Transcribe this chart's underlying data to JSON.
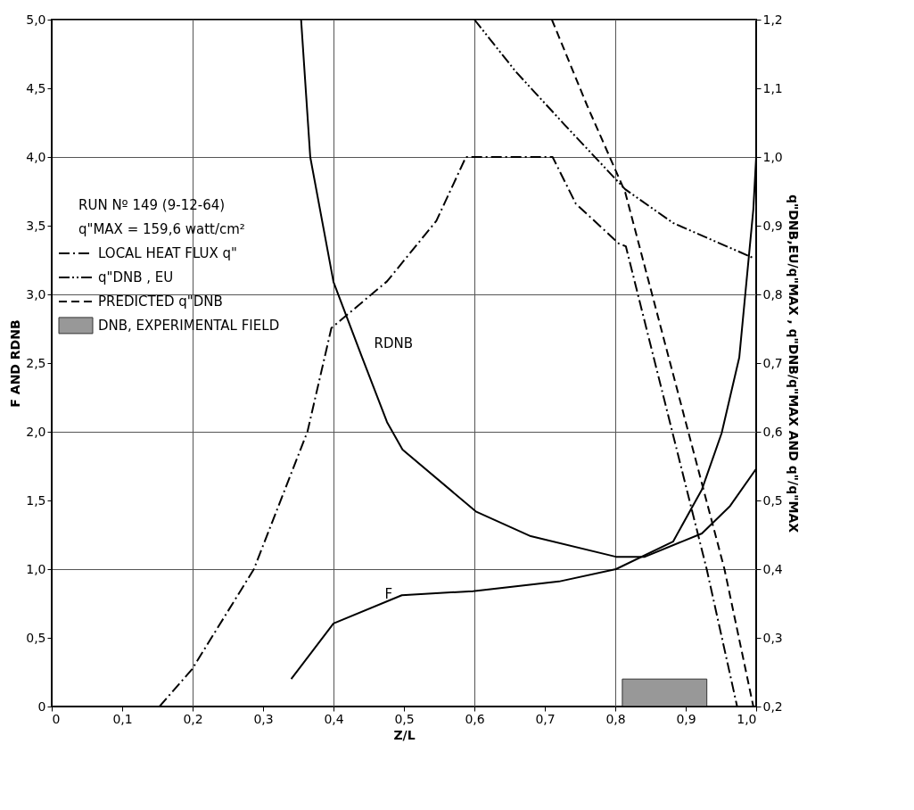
{
  "chart_data": {
    "type": "line",
    "xlabel": "Z/L",
    "ylabel": "F AND RDNB",
    "y2label": "q\"DNB,EU/q\"MAX , q\"DNB/q\"MAX AND q\"/q\"MAX",
    "annotations": [
      "RUN Nº 149 (9-12-64)",
      "q\"MAX = 159,6 watt/cm²",
      {
        "text": "RDNB",
        "x": 0.44,
        "y": 2.55
      },
      {
        "text": "F",
        "x": 0.455,
        "y": 0.73
      }
    ],
    "series": [
      {
        "name": "LOCAL HEAT FLUX q\"",
        "type": "line",
        "axis": "y2",
        "color": "#000000",
        "line_style": "dashdot",
        "x": [
          0.153,
          0.199,
          0.287,
          0.363,
          0.397,
          0.476,
          0.546,
          0.588,
          0.711,
          0.744,
          0.805,
          0.815,
          0.93,
          0.973
        ],
        "values": [
          0.2,
          0.254,
          0.4,
          0.6,
          0.751,
          0.819,
          0.907,
          1.0,
          1.0,
          0.932,
          0.874,
          0.87,
          0.399,
          0.2
        ]
      },
      {
        "name": "q\"DNB , EU",
        "type": "line",
        "axis": "y2",
        "color": "#000000",
        "line_style": "dashdotdot",
        "x": [
          0.6,
          0.659,
          0.728,
          0.814,
          0.882,
          0.996
        ],
        "values": [
          1.2,
          1.124,
          1.047,
          0.953,
          0.904,
          0.853
        ]
      },
      {
        "name": "PREDICTED q\"DNB",
        "type": "line",
        "axis": "y2",
        "color": "#000000",
        "line_style": "dashed",
        "x": [
          0.71,
          0.76,
          0.814,
          0.955,
          0.996
        ],
        "values": [
          1.2,
          1.075,
          0.949,
          0.4,
          0.2
        ]
      },
      {
        "name": "DNB, EXPERIMENTAL FIELD",
        "type": "area",
        "color": "#7f7f7f",
        "x": [
          0.81,
          0.93
        ],
        "values": [
          0.2,
          0.2
        ]
      },
      {
        "type": "line",
        "color": "#000000",
        "line_style": "solid",
        "x": [
          0.354,
          0.367,
          0.4,
          0.44,
          0.476,
          0.498,
          0.602,
          0.68,
          0.801,
          0.842,
          0.923,
          0.963,
          1.0
        ],
        "values": [
          5.0,
          4.0,
          3.09,
          2.55,
          2.07,
          1.87,
          1.42,
          1.24,
          1.09,
          1.09,
          1.26,
          1.46,
          1.73
        ]
      },
      {
        "type": "line",
        "color": "#000000",
        "line_style": "solid",
        "x": [
          0.34,
          0.4,
          0.497,
          0.598,
          0.72,
          0.801,
          0.882,
          0.923,
          0.951,
          0.976,
          0.996,
          1.0
        ],
        "values": [
          0.2,
          0.605,
          0.81,
          0.84,
          0.91,
          1.0,
          1.2,
          1.58,
          1.99,
          2.54,
          3.62,
          4.0
        ]
      }
    ],
    "xlim": [
      0,
      1.0
    ],
    "xticks": [
      0,
      {
        "value": 0.1,
        "label": "0,1"
      },
      {
        "value": 0.2,
        "label": "0,2"
      },
      {
        "value": 0.3,
        "label": "0,3"
      },
      {
        "value": 0.4,
        "label": "0,4"
      },
      {
        "value": 0.5,
        "label": "0,5"
      },
      {
        "value": 0.6,
        "label": "0,6"
      },
      {
        "value": 0.7,
        "label": "0,7"
      },
      {
        "value": 0.8,
        "label": "0,8"
      },
      {
        "value": 0.9,
        "label": "0,9"
      },
      {
        "value": 1.0,
        "label": "1,0"
      }
    ],
    "ylim": [
      0,
      5.0
    ],
    "yticks": [
      0,
      {
        "value": 0.5,
        "label": "0,5"
      },
      {
        "value": 1.0,
        "label": "1,0"
      },
      {
        "value": 1.5,
        "label": "1,5"
      },
      {
        "value": 2.0,
        "label": "2,0"
      },
      {
        "value": 2.5,
        "label": "2,5"
      },
      {
        "value": 3.0,
        "label": "3,0"
      },
      {
        "value": 3.5,
        "label": "3,5"
      },
      {
        "value": 4.0,
        "label": "4,0"
      },
      {
        "value": 4.5,
        "label": "4,5"
      },
      {
        "value": 5.0,
        "label": "5,0"
      }
    ],
    "y2lim": [
      0.2,
      1.2
    ],
    "y2ticks": [
      {
        "value": 0.2,
        "label": "0,2"
      },
      {
        "value": 0.3,
        "label": "0,3"
      },
      {
        "value": 0.4,
        "label": "0,4"
      },
      {
        "value": 0.5,
        "label": "0,5"
      },
      {
        "value": 0.6,
        "label": "0,6"
      },
      {
        "value": 0.7,
        "label": "0,7"
      },
      {
        "value": 0.8,
        "label": "0,8"
      },
      {
        "value": 0.9,
        "label": "0,9"
      },
      {
        "value": 1.0,
        "label": "1,0"
      },
      {
        "value": 1.1,
        "label": "1,1"
      },
      {
        "value": 1.2,
        "label": "1,2"
      }
    ],
    "grid": true,
    "legend": "top left"
  }
}
